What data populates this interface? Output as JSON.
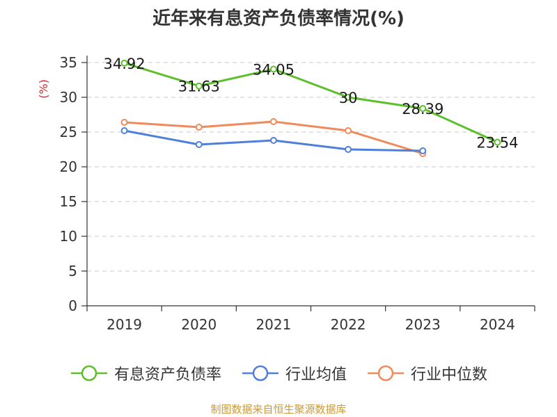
{
  "title": "近年来有息资产负债率情况(%)",
  "source": "制图数据来自恒生聚源数据库",
  "chart_data": {
    "type": "line",
    "ylabel": "(%)",
    "xlabel": "",
    "ylim": [
      0,
      35
    ],
    "yticks": [
      0,
      5,
      10,
      15,
      20,
      25,
      30,
      35
    ],
    "categories": [
      "2019",
      "2020",
      "2021",
      "2022",
      "2023",
      "2024"
    ],
    "grid": true,
    "legend_position": "bottom",
    "series": [
      {
        "name": "有息资产负债率",
        "color": "#5dbf2a",
        "values": [
          34.92,
          31.63,
          34.05,
          30,
          28.39,
          23.54
        ],
        "labels": [
          "34.92",
          "31.63",
          "34.05",
          "30",
          "28.39",
          "23.54"
        ]
      },
      {
        "name": "行业均值",
        "color": "#4f7fdb",
        "values": [
          25.2,
          23.2,
          23.8,
          22.5,
          22.3,
          null
        ]
      },
      {
        "name": "行业中位数",
        "color": "#f08a5a",
        "values": [
          26.4,
          25.7,
          26.5,
          25.2,
          21.9,
          null
        ]
      }
    ]
  }
}
